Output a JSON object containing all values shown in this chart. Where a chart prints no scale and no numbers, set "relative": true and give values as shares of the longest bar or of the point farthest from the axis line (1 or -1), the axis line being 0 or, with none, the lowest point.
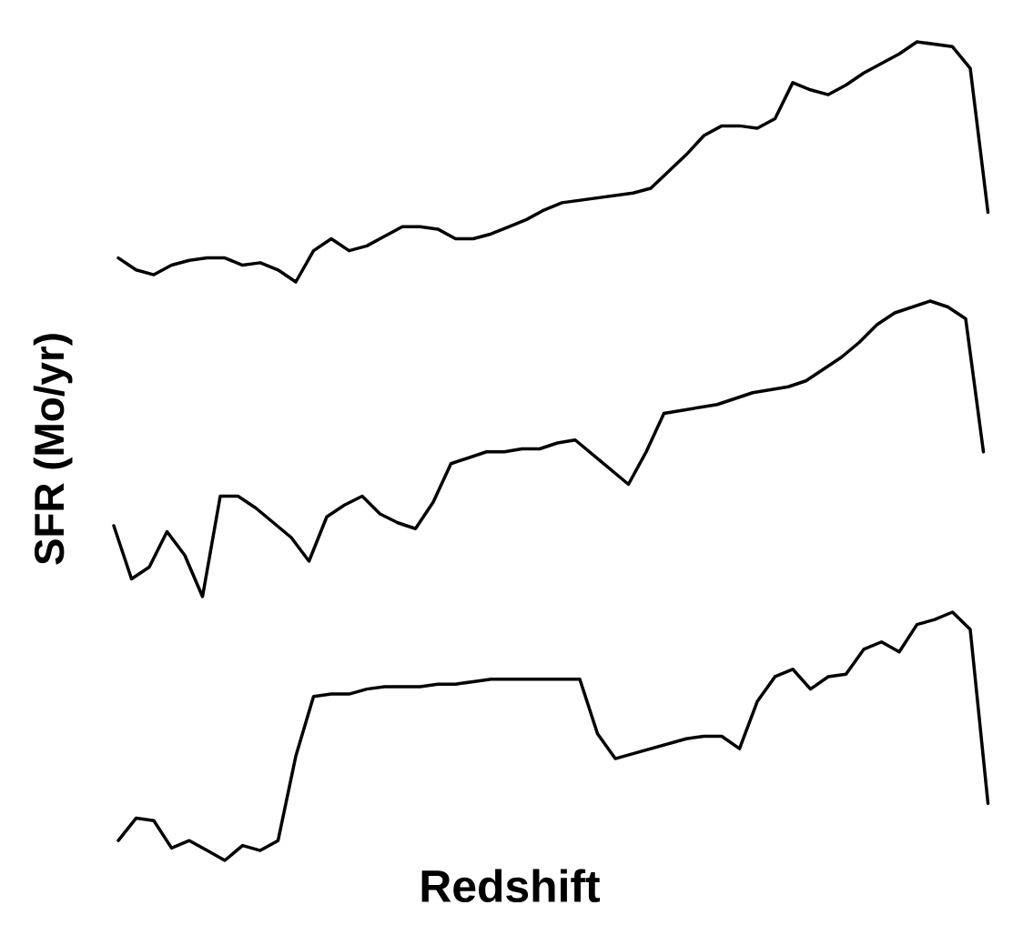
{
  "chart_data": [
    {
      "type": "line",
      "relative": true,
      "categories": [
        null,
        null,
        null,
        null,
        null,
        null,
        null,
        null,
        null,
        null,
        null,
        null,
        null,
        null,
        null,
        null,
        null,
        null,
        null,
        null,
        null,
        null,
        null,
        null,
        null,
        null,
        null,
        null,
        null,
        null,
        null,
        null,
        null,
        null,
        null,
        null,
        null,
        null,
        null,
        null,
        null,
        null,
        null,
        null,
        null,
        null,
        null,
        null,
        null,
        null
      ],
      "series": [
        {
          "color": "#000000",
          "values": [
            0.1,
            0.05,
            0.03,
            0.07,
            0.09,
            0.1,
            0.1,
            0.07,
            0.08,
            0.05,
            0,
            0.13,
            0.18,
            0.13,
            0.15,
            0.19,
            0.23,
            0.23,
            0.22,
            0.18,
            0.18,
            0.2,
            0.23,
            0.26,
            0.3,
            0.33,
            0.34,
            0.35,
            0.36,
            0.37,
            0.39,
            0.46,
            0.53,
            0.61,
            0.65,
            0.65,
            0.64,
            0.68,
            0.83,
            0.8,
            0.78,
            0.82,
            0.87,
            0.91,
            0.95,
            1,
            0.99,
            0.98,
            0.89,
            0.29
          ]
        }
      ]
    },
    {
      "type": "line",
      "relative": true,
      "ylabel": "SFR (Mo/yr)",
      "categories": [
        null,
        null,
        null,
        null,
        null,
        null,
        null,
        null,
        null,
        null,
        null,
        null,
        null,
        null,
        null,
        null,
        null,
        null,
        null,
        null,
        null,
        null,
        null,
        null,
        null,
        null,
        null,
        null,
        null,
        null,
        null,
        null,
        null,
        null,
        null,
        null,
        null,
        null,
        null,
        null,
        null,
        null,
        null,
        null,
        null,
        null,
        null,
        null,
        null,
        null
      ],
      "series": [
        {
          "color": "#000000",
          "values": [
            0.24,
            0.06,
            0.1,
            0.22,
            0.14,
            0,
            0.34,
            0.34,
            0.3,
            0.25,
            0.2,
            0.12,
            0.27,
            0.31,
            0.34,
            0.28,
            0.25,
            0.23,
            0.32,
            0.45,
            0.47,
            0.49,
            0.49,
            0.5,
            0.5,
            0.52,
            0.53,
            0.48,
            0.43,
            0.38,
            0.49,
            0.62,
            0.63,
            0.64,
            0.65,
            0.67,
            0.69,
            0.7,
            0.71,
            0.73,
            0.77,
            0.81,
            0.86,
            0.92,
            0.96,
            0.98,
            1,
            0.98,
            0.94,
            0.49
          ]
        }
      ]
    },
    {
      "type": "line",
      "relative": true,
      "xlabel": "Redshift",
      "categories": [
        null,
        null,
        null,
        null,
        null,
        null,
        null,
        null,
        null,
        null,
        null,
        null,
        null,
        null,
        null,
        null,
        null,
        null,
        null,
        null,
        null,
        null,
        null,
        null,
        null,
        null,
        null,
        null,
        null,
        null,
        null,
        null,
        null,
        null,
        null,
        null,
        null,
        null,
        null,
        null,
        null,
        null,
        null,
        null,
        null,
        null,
        null,
        null,
        null,
        null
      ],
      "series": [
        {
          "color": "#000000",
          "values": [
            0.08,
            0.17,
            0.16,
            0.05,
            0.08,
            0.04,
            0,
            0.06,
            0.04,
            0.08,
            0.42,
            0.66,
            0.67,
            0.67,
            0.69,
            0.7,
            0.7,
            0.7,
            0.71,
            0.71,
            0.72,
            0.73,
            0.73,
            0.73,
            0.73,
            0.73,
            0.73,
            0.51,
            0.41,
            0.43,
            0.45,
            0.47,
            0.49,
            0.5,
            0.5,
            0.45,
            0.64,
            0.74,
            0.77,
            0.69,
            0.74,
            0.75,
            0.85,
            0.88,
            0.84,
            0.95,
            0.97,
            1,
            0.93,
            0.23
          ]
        }
      ]
    }
  ]
}
